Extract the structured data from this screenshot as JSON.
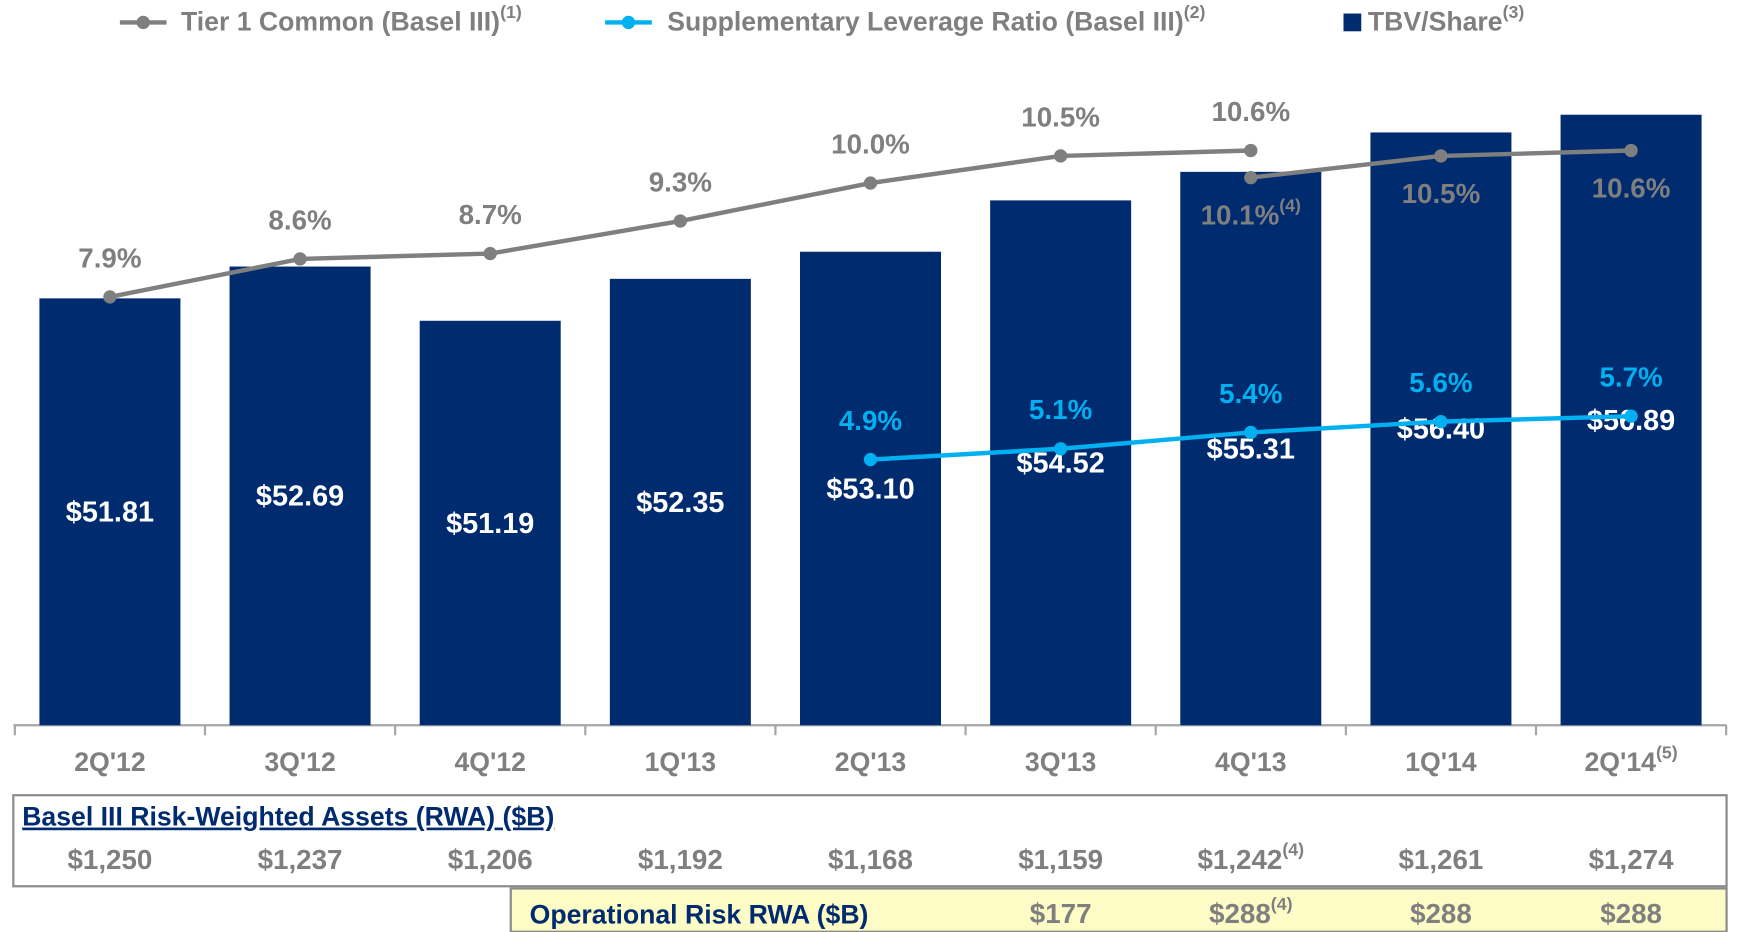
{
  "chart_data": {
    "type": "bar",
    "categories": [
      "2Q'12",
      "3Q'12",
      "4Q'12",
      "1Q'13",
      "2Q'13",
      "3Q'13",
      "4Q'13",
      "1Q'14",
      "2Q'14"
    ],
    "category_notes": [
      null,
      null,
      null,
      null,
      null,
      null,
      null,
      null,
      "(5)"
    ],
    "ylim": [
      40,
      58
    ],
    "y2lim": [
      0,
      12
    ],
    "series": [
      {
        "name": "Tier 1 Common (Basel III)",
        "note": "(1)",
        "type": "line",
        "axis": "y2",
        "color": "#7f7f7f",
        "values": [
          7.9,
          8.6,
          8.7,
          9.3,
          10.0,
          10.5,
          10.6,
          null,
          null
        ],
        "value_labels": [
          "7.9%",
          "8.6%",
          "8.7%",
          "9.3%",
          "10.0%",
          "10.5%",
          "10.6%",
          null,
          null
        ],
        "restated_values": [
          null,
          null,
          null,
          null,
          null,
          null,
          10.1,
          10.5,
          10.6
        ],
        "restated_value_labels": [
          null,
          null,
          null,
          null,
          null,
          null,
          "10.1%",
          "10.5%",
          "10.6%"
        ],
        "restated_note": "(4)"
      },
      {
        "name": "Supplementary Leverage Ratio (Basel III)",
        "note": "(2)",
        "type": "line",
        "axis": "y2",
        "color": "#00b0f0",
        "values": [
          null,
          null,
          null,
          null,
          4.9,
          5.1,
          5.4,
          5.6,
          5.7
        ],
        "value_labels": [
          null,
          null,
          null,
          null,
          "4.9%",
          "5.1%",
          "5.4%",
          "5.6%",
          "5.7%"
        ]
      },
      {
        "name": "TBV/Share",
        "note": "(3)",
        "type": "bar",
        "color": "#002b6f",
        "values": [
          51.81,
          52.69,
          51.19,
          52.35,
          53.1,
          54.52,
          55.31,
          56.4,
          56.89
        ],
        "value_labels": [
          "$51.81",
          "$52.69",
          "$51.19",
          "$52.35",
          "$53.10",
          "$54.52",
          "$55.31",
          "$56.40",
          "$56.89"
        ]
      }
    ]
  },
  "tables": {
    "rwa": {
      "title": "Basel III Risk-Weighted Assets (RWA) ($B)",
      "values": [
        1250,
        1237,
        1206,
        1192,
        1168,
        1159,
        1242,
        1261,
        1274
      ],
      "value_labels": [
        "$1,250",
        "$1,237",
        "$1,206",
        "$1,192",
        "$1,168",
        "$1,159",
        "$1,242",
        "$1,261",
        "$1,274"
      ],
      "notes": [
        null,
        null,
        null,
        null,
        null,
        null,
        "(4)",
        null,
        null
      ]
    },
    "op_risk": {
      "title": "Operational Risk RWA ($B)",
      "values": [
        null,
        null,
        null,
        null,
        null,
        177,
        288,
        288,
        288
      ],
      "value_labels": [
        null,
        null,
        null,
        null,
        null,
        "$177",
        "$288",
        "$288",
        "$288"
      ],
      "notes": [
        null,
        null,
        null,
        null,
        null,
        null,
        "(4)",
        null,
        null
      ]
    }
  }
}
